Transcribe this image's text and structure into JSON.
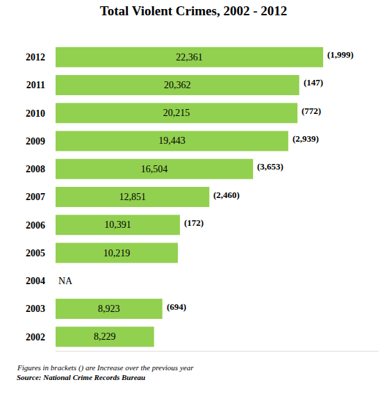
{
  "chart_data": {
    "type": "bar",
    "orientation": "horizontal",
    "title": "Total Violent Crimes, 2002 - 2012",
    "categories": [
      "2012",
      "2011",
      "2010",
      "2009",
      "2008",
      "2007",
      "2006",
      "2005",
      "2004",
      "2003",
      "2002"
    ],
    "values": [
      22361,
      20362,
      20215,
      19443,
      16504,
      12851,
      10391,
      10219,
      null,
      8923,
      8229
    ],
    "value_labels": [
      "22,361",
      "20,362",
      "20,215",
      "19,443",
      "16,504",
      "12,851",
      "10,391",
      "10,219",
      "NA",
      "8,923",
      "8,229"
    ],
    "increase": [
      1999,
      147,
      772,
      2939,
      3653,
      2460,
      172,
      null,
      null,
      694,
      null
    ],
    "increase_labels": [
      "(1,999)",
      "(147)",
      "(772)",
      "(2,939)",
      "(3,653)",
      "(2,460)",
      "(172)",
      null,
      null,
      "(694)",
      null
    ],
    "color": "#92d050",
    "xlim": [
      0,
      27000
    ],
    "data_labels": true,
    "tick_labels": "y",
    "grid": false,
    "notes": "Figures in brackets () are Increase over the previous year",
    "source": "Source: National Crime Records Bureau"
  }
}
